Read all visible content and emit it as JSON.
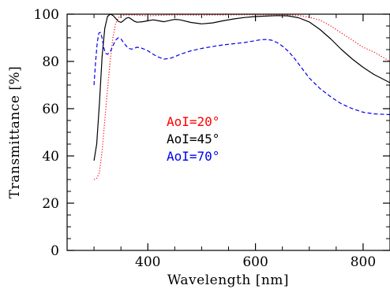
{
  "chart_data": {
    "type": "line",
    "xlabel": "Wavelength [nm]",
    "ylabel": "Transmittance [%]",
    "xlim": [
      250,
      850
    ],
    "ylim": [
      0,
      100
    ],
    "x_ticks_major": [
      400,
      600,
      800
    ],
    "x_ticks_minor_step": 50,
    "y_ticks_major": [
      0,
      20,
      40,
      60,
      80,
      100
    ],
    "y_ticks_minor_step": 5,
    "legend_position": "center-left",
    "series": [
      {
        "name": "AoI=20°",
        "color": "#ff0000",
        "dash": "dotted",
        "points": [
          [
            300,
            30
          ],
          [
            305,
            30.5
          ],
          [
            310,
            33
          ],
          [
            315,
            42
          ],
          [
            320,
            55
          ],
          [
            325,
            68
          ],
          [
            330,
            80
          ],
          [
            335,
            90
          ],
          [
            340,
            96
          ],
          [
            345,
            98.5
          ],
          [
            350,
            99.3
          ],
          [
            360,
            99.7
          ],
          [
            380,
            99.6
          ],
          [
            400,
            99.3
          ],
          [
            420,
            99.5
          ],
          [
            450,
            99.7
          ],
          [
            500,
            99.6
          ],
          [
            550,
            99.7
          ],
          [
            600,
            99.8
          ],
          [
            650,
            99.8
          ],
          [
            680,
            99.5
          ],
          [
            700,
            98.7
          ],
          [
            720,
            97.5
          ],
          [
            740,
            95
          ],
          [
            760,
            92
          ],
          [
            780,
            89
          ],
          [
            800,
            86
          ],
          [
            820,
            84
          ],
          [
            850,
            80
          ]
        ]
      },
      {
        "name": "AoI=45°",
        "color": "#000000",
        "dash": "solid",
        "points": [
          [
            300,
            38
          ],
          [
            305,
            45
          ],
          [
            310,
            62
          ],
          [
            315,
            82
          ],
          [
            320,
            94
          ],
          [
            325,
            99
          ],
          [
            330,
            100
          ],
          [
            335,
            99.5
          ],
          [
            340,
            98.3
          ],
          [
            345,
            97
          ],
          [
            350,
            96.5
          ],
          [
            355,
            97.3
          ],
          [
            360,
            98.3
          ],
          [
            365,
            98.6
          ],
          [
            370,
            97.8
          ],
          [
            375,
            97
          ],
          [
            380,
            96.6
          ],
          [
            390,
            96.8
          ],
          [
            400,
            97.2
          ],
          [
            410,
            97.6
          ],
          [
            420,
            97.2
          ],
          [
            430,
            96.8
          ],
          [
            440,
            97.3
          ],
          [
            450,
            97.8
          ],
          [
            460,
            97.6
          ],
          [
            480,
            96.5
          ],
          [
            500,
            95.9
          ],
          [
            520,
            96.3
          ],
          [
            540,
            97.2
          ],
          [
            560,
            98
          ],
          [
            580,
            98.6
          ],
          [
            600,
            99
          ],
          [
            620,
            99.2
          ],
          [
            640,
            99.4
          ],
          [
            660,
            99.3
          ],
          [
            680,
            98.5
          ],
          [
            700,
            96.7
          ],
          [
            720,
            93.5
          ],
          [
            740,
            89.5
          ],
          [
            760,
            85
          ],
          [
            780,
            81
          ],
          [
            800,
            77.5
          ],
          [
            820,
            74.5
          ],
          [
            850,
            71
          ]
        ]
      },
      {
        "name": "AoI=70°",
        "color": "#0000ee",
        "dash": "dashed",
        "points": [
          [
            300,
            70
          ],
          [
            303,
            80
          ],
          [
            306,
            88
          ],
          [
            309,
            92
          ],
          [
            312,
            92.3
          ],
          [
            315,
            90
          ],
          [
            318,
            86
          ],
          [
            321,
            83.5
          ],
          [
            325,
            83
          ],
          [
            330,
            84
          ],
          [
            335,
            86.5
          ],
          [
            340,
            89
          ],
          [
            345,
            90
          ],
          [
            350,
            89.5
          ],
          [
            355,
            88
          ],
          [
            360,
            86.5
          ],
          [
            365,
            85.5
          ],
          [
            370,
            85.2
          ],
          [
            375,
            85.6
          ],
          [
            380,
            86
          ],
          [
            385,
            85.8
          ],
          [
            390,
            85.5
          ],
          [
            400,
            84.5
          ],
          [
            410,
            83
          ],
          [
            420,
            81.8
          ],
          [
            430,
            81
          ],
          [
            440,
            81.2
          ],
          [
            450,
            82
          ],
          [
            460,
            83
          ],
          [
            480,
            84.5
          ],
          [
            500,
            85.5
          ],
          [
            520,
            86.3
          ],
          [
            540,
            87
          ],
          [
            560,
            87.5
          ],
          [
            580,
            88
          ],
          [
            600,
            88.8
          ],
          [
            610,
            89.2
          ],
          [
            620,
            89.3
          ],
          [
            630,
            89
          ],
          [
            640,
            88
          ],
          [
            650,
            86.5
          ],
          [
            660,
            84.5
          ],
          [
            670,
            82
          ],
          [
            680,
            79
          ],
          [
            690,
            76
          ],
          [
            700,
            73
          ],
          [
            720,
            68.5
          ],
          [
            740,
            65
          ],
          [
            760,
            62
          ],
          [
            780,
            60
          ],
          [
            800,
            58.5
          ],
          [
            820,
            57.8
          ],
          [
            850,
            57.5
          ]
        ]
      }
    ]
  }
}
